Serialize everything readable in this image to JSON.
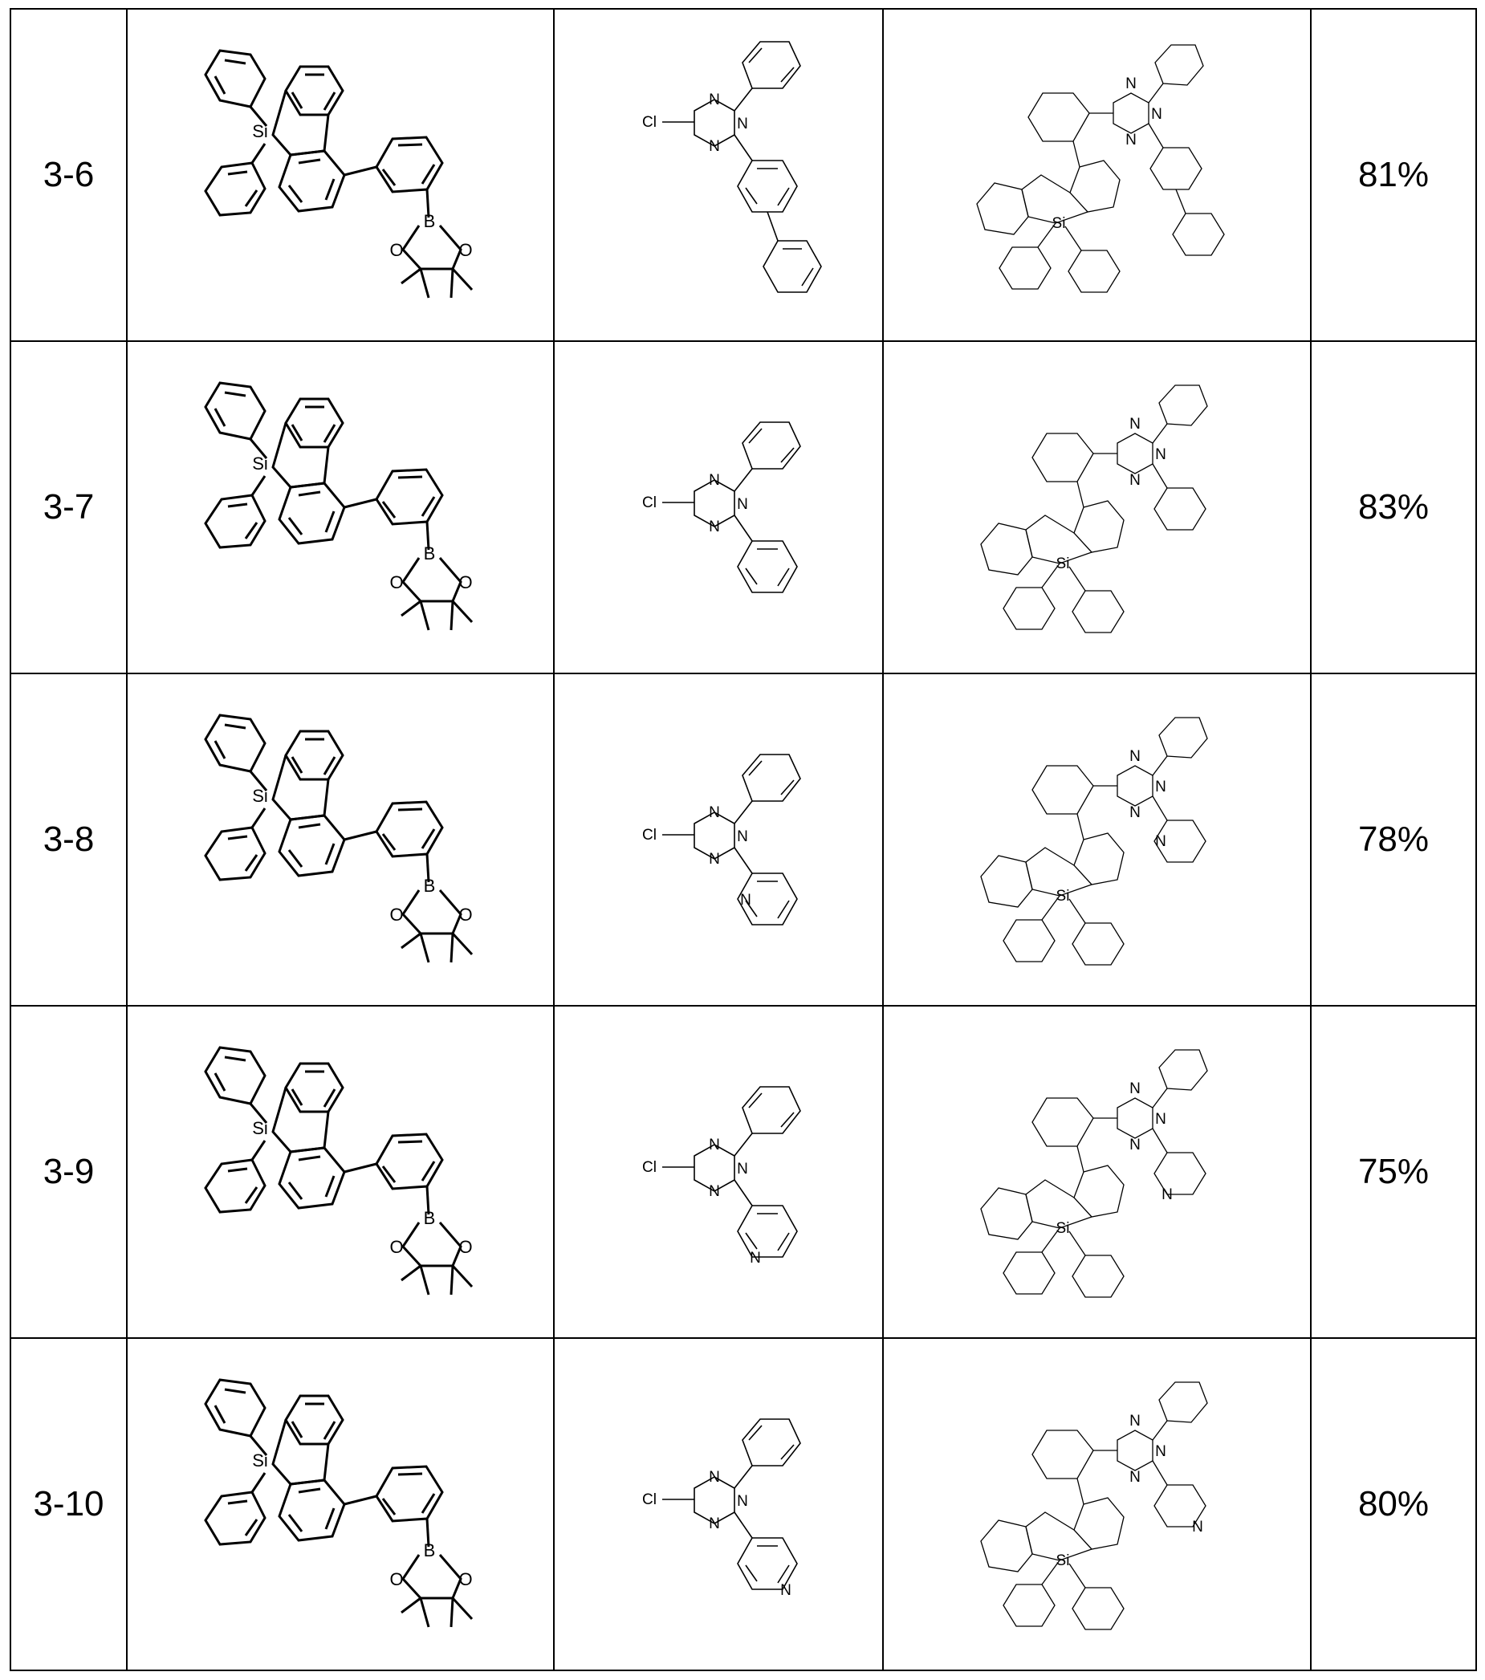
{
  "rows": [
    {
      "id": "3-6",
      "yield": "81%",
      "reagent_b_sub": "biphenyl",
      "product_sub": "biphenyl"
    },
    {
      "id": "3-7",
      "yield": "83%",
      "reagent_b_sub": "phenyl",
      "product_sub": "phenyl"
    },
    {
      "id": "3-8",
      "yield": "78%",
      "reagent_b_sub": "pyridin-2-yl",
      "product_sub": "pyridin-2-yl"
    },
    {
      "id": "3-9",
      "yield": "75%",
      "reagent_b_sub": "pyridin-3-yl",
      "product_sub": "pyridin-3-yl"
    },
    {
      "id": "3-10",
      "yield": "80%",
      "reagent_b_sub": "pyridin-4-yl",
      "product_sub": "pyridin-4-yl"
    }
  ],
  "atoms": {
    "si": "Si",
    "b": "B",
    "o": "O",
    "cl": "Cl",
    "n": "N"
  }
}
